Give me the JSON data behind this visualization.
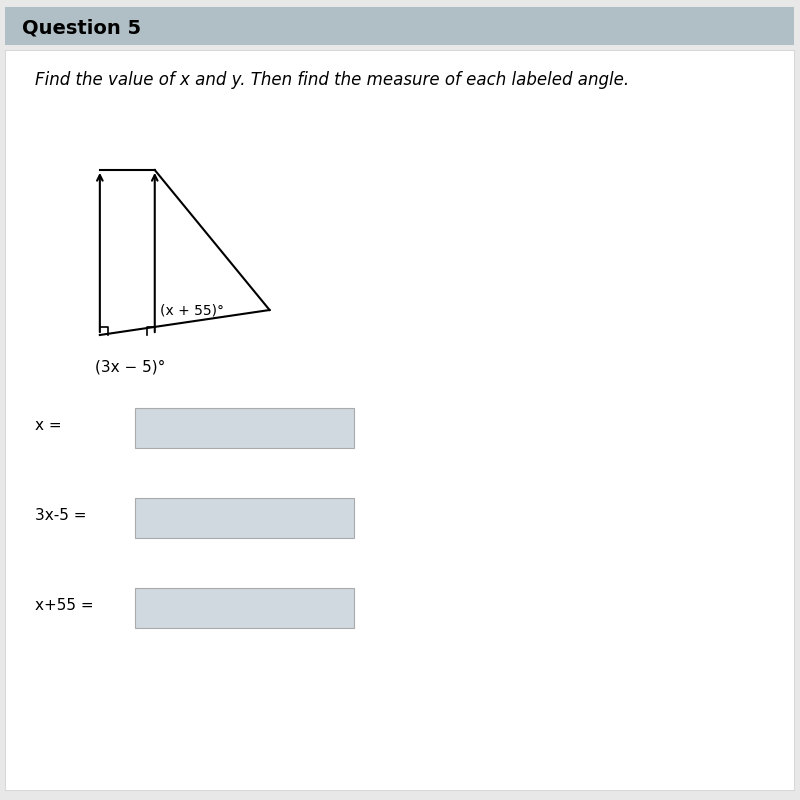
{
  "title": "Question 5",
  "title_bg_color": "#b0bec5",
  "bg_color": "#f0f0f0",
  "main_bg_color": "#e8e8e8",
  "question_text": "Find the value of x and y. Then find the measure of each labeled angle.",
  "angle_label_1": "(x + 55)°",
  "angle_label_2": "(3x − 5)°",
  "input_labels": [
    "x =",
    "3x-5 =",
    "x+55 ="
  ],
  "input_box_color": "#d0d8e0",
  "triangle_color": "#000000",
  "arrow_color": "#000000",
  "font_size_title": 14,
  "font_size_question": 12,
  "font_size_labels": 11,
  "font_size_angle": 10
}
